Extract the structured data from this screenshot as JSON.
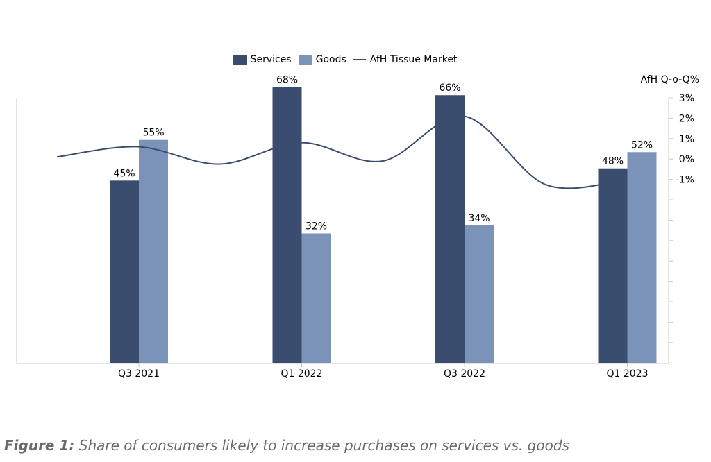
{
  "chart_data": {
    "type": "bar",
    "categories": [
      "Q3 2021",
      "Q1 2022",
      "Q3 2022",
      "Q1 2023"
    ],
    "series": [
      {
        "name": "Services",
        "values": [
          45,
          68,
          66,
          48
        ],
        "labels": [
          "45%",
          "68%",
          "66%",
          "48%"
        ],
        "color": "#3a4d6e"
      },
      {
        "name": "Goods",
        "values": [
          55,
          32,
          34,
          52
        ],
        "labels": [
          "55%",
          "32%",
          "34%",
          "52%"
        ],
        "color": "#7b93b9"
      }
    ],
    "line_series": {
      "name": "AfH Tissue Market",
      "axis": "right",
      "color": "#3a4d6e",
      "values": [
        0.1,
        0.8,
        2.1,
        -1.0
      ],
      "wiggle_points": [
        {
          "x": 0.0,
          "y": 0.1
        },
        {
          "x": 0.5,
          "y": 0.6
        },
        {
          "x": 1.0,
          "y": -0.25
        },
        {
          "x": 1.5,
          "y": 0.8
        },
        {
          "x": 2.0,
          "y": -0.1
        },
        {
          "x": 2.5,
          "y": 2.1
        },
        {
          "x": 3.0,
          "y": -1.25
        },
        {
          "x": 3.5,
          "y": -1.0
        }
      ]
    },
    "right_axis": {
      "title": "AfH Q-o-Q%",
      "ticks": [
        "3%",
        "2%",
        "1%",
        "0%",
        "-1%"
      ],
      "tick_values": [
        3,
        2,
        1,
        0,
        -1
      ],
      "range": [
        -10,
        3
      ]
    },
    "ylim": [
      0,
      100
    ],
    "grid": false,
    "legend_position": "top-center"
  },
  "legend": {
    "services": "Services",
    "goods": "Goods",
    "line": "AfH Tissue Market"
  },
  "caption": {
    "prefix": "Figure 1:",
    "text": " Share of consumers likely to increase purchases on services vs. goods"
  }
}
